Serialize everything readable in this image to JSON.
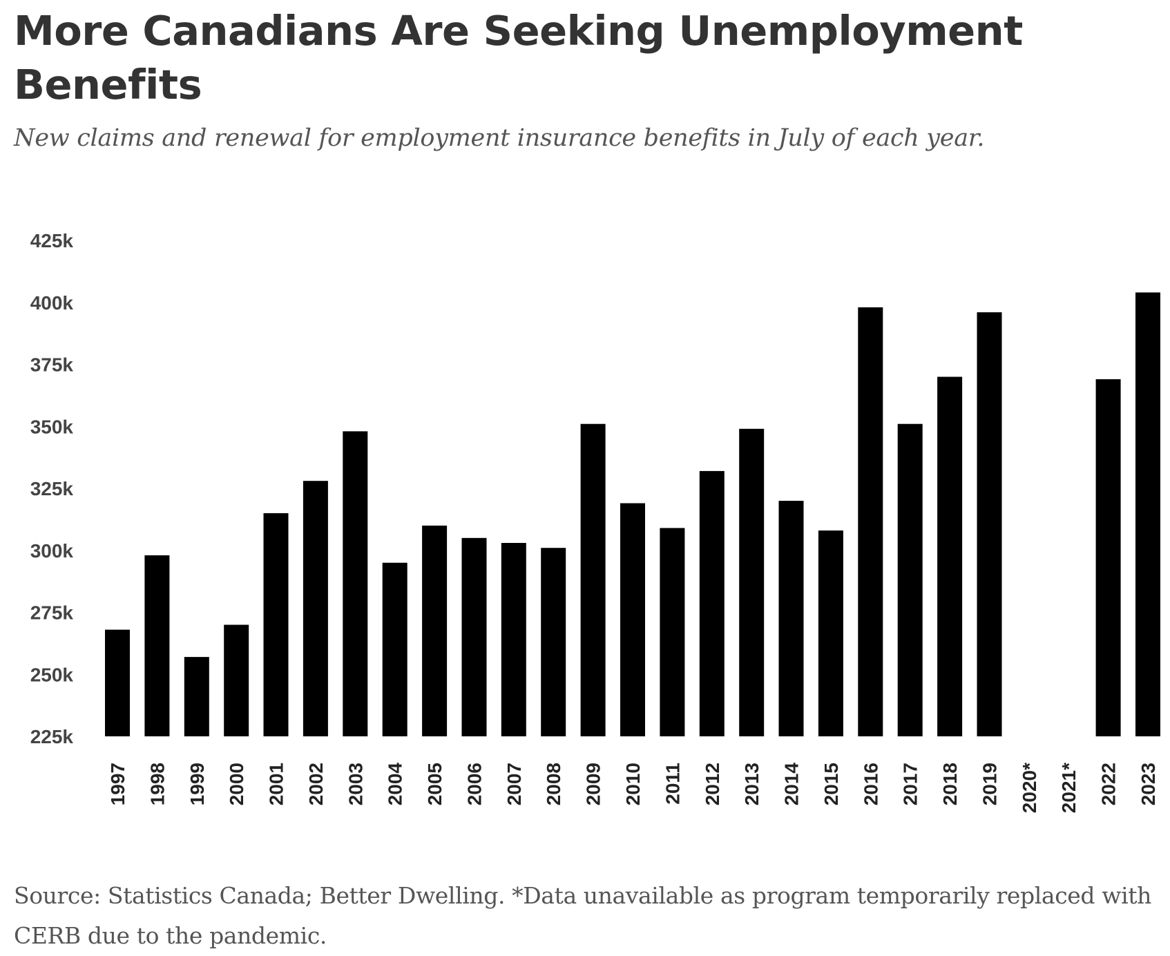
{
  "header": {
    "title": "More Canadians Are Seeking Unemployment Benefits",
    "subtitle": "New claims and renewal for employment insurance benefits in July of each year."
  },
  "footer": {
    "source": "Source: Statistics Canada; Better Dwelling. *Data unavailable as program temporarily replaced with CERB due to the pandemic."
  },
  "colors": {
    "bar": "#000000",
    "title": "#333333",
    "text_muted": "#555555"
  },
  "chart_data": {
    "type": "bar",
    "title": "More Canadians Are Seeking Unemployment Benefits",
    "subtitle": "New claims and renewal for employment insurance benefits in July of each year.",
    "xlabel": "",
    "ylabel": "",
    "categories": [
      "1997",
      "1998",
      "1999",
      "2000",
      "2001",
      "2002",
      "2003",
      "2004",
      "2005",
      "2006",
      "2007",
      "2008",
      "2009",
      "2010",
      "2011",
      "2012",
      "2013",
      "2014",
      "2015",
      "2016",
      "2017",
      "2018",
      "2019",
      "2020*",
      "2021*",
      "2022",
      "2023"
    ],
    "values": [
      268000,
      298000,
      257000,
      270000,
      315000,
      328000,
      348000,
      295000,
      310000,
      305000,
      303000,
      301000,
      351000,
      319000,
      309000,
      332000,
      349000,
      320000,
      308000,
      398000,
      351000,
      370000,
      396000,
      null,
      null,
      369000,
      404000
    ],
    "ylim": [
      225000,
      425000
    ],
    "yticks": [
      225000,
      250000,
      275000,
      300000,
      325000,
      350000,
      375000,
      400000,
      425000
    ],
    "ytick_labels": [
      "225k",
      "250k",
      "275k",
      "300k",
      "325k",
      "350k",
      "375k",
      "400k",
      "425k"
    ],
    "grid": false,
    "legend": "none",
    "annotation": "*Data unavailable as program temporarily replaced with CERB due to the pandemic."
  }
}
